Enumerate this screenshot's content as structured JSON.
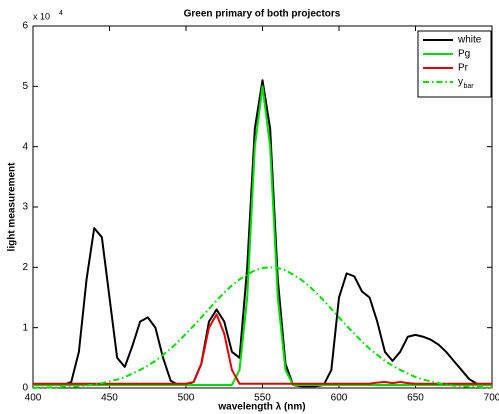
{
  "chart_data": {
    "type": "line",
    "title": "Green primary of both projectors",
    "xlabel": "wavelength λ (nm)",
    "ylabel": "light measurement",
    "y_multiplier": "x 10",
    "y_multiplier_exponent": "4",
    "xlim": [
      400,
      700
    ],
    "ylim": [
      0,
      6
    ],
    "xticks": [
      400,
      450,
      500,
      550,
      600,
      650,
      700
    ],
    "yticks": [
      0,
      1,
      2,
      3,
      4,
      5,
      6
    ],
    "legend": "top-right",
    "x": [
      400,
      405,
      410,
      415,
      420,
      425,
      430,
      435,
      440,
      445,
      450,
      455,
      460,
      465,
      470,
      475,
      480,
      485,
      490,
      495,
      500,
      505,
      510,
      515,
      520,
      525,
      530,
      535,
      540,
      545,
      550,
      555,
      560,
      565,
      570,
      575,
      580,
      585,
      590,
      595,
      600,
      605,
      610,
      615,
      620,
      625,
      630,
      635,
      640,
      645,
      650,
      655,
      660,
      665,
      670,
      675,
      680,
      685,
      690,
      695,
      700
    ],
    "series": [
      {
        "name": "white",
        "color": "#000000",
        "dash": "solid",
        "values": [
          0.05,
          0.05,
          0.05,
          0.05,
          0.05,
          0.1,
          0.6,
          1.8,
          2.65,
          2.5,
          1.5,
          0.5,
          0.35,
          0.7,
          1.1,
          1.17,
          1.0,
          0.5,
          0.12,
          0.05,
          0.05,
          0.1,
          0.4,
          1.1,
          1.3,
          1.1,
          0.6,
          0.5,
          2.0,
          4.3,
          5.1,
          4.3,
          1.8,
          0.4,
          0.05,
          0.03,
          0.03,
          0.03,
          0.05,
          0.3,
          1.5,
          1.9,
          1.85,
          1.6,
          1.5,
          1.1,
          0.6,
          0.45,
          0.6,
          0.85,
          0.88,
          0.85,
          0.8,
          0.72,
          0.6,
          0.45,
          0.3,
          0.15,
          0.07,
          0.05,
          0.05
        ]
      },
      {
        "name": "Pg",
        "color": "#00dd00",
        "dash": "solid",
        "values": [
          0.05,
          0.05,
          0.05,
          0.05,
          0.05,
          0.05,
          0.05,
          0.05,
          0.05,
          0.05,
          0.05,
          0.05,
          0.05,
          0.05,
          0.05,
          0.05,
          0.05,
          0.05,
          0.05,
          0.05,
          0.05,
          0.05,
          0.05,
          0.05,
          0.05,
          0.05,
          0.05,
          0.3,
          1.5,
          4.0,
          5.0,
          4.0,
          1.5,
          0.3,
          0.05,
          0.05,
          0.05,
          0.05,
          0.05,
          0.05,
          0.05,
          0.05,
          0.05,
          0.05,
          0.05,
          0.05,
          0.05,
          0.05,
          0.05,
          0.05,
          0.05,
          0.05,
          0.05,
          0.05,
          0.05,
          0.05,
          0.05,
          0.05,
          0.05,
          0.05,
          0.05
        ]
      },
      {
        "name": "Pr",
        "color": "#e00000",
        "dash": "solid",
        "values": [
          0.07,
          0.07,
          0.07,
          0.07,
          0.07,
          0.07,
          0.07,
          0.07,
          0.07,
          0.07,
          0.07,
          0.07,
          0.07,
          0.07,
          0.07,
          0.07,
          0.07,
          0.07,
          0.07,
          0.07,
          0.07,
          0.1,
          0.4,
          1.0,
          1.22,
          0.9,
          0.3,
          0.07,
          0.07,
          0.07,
          0.07,
          0.07,
          0.07,
          0.07,
          0.07,
          0.07,
          0.07,
          0.07,
          0.07,
          0.07,
          0.07,
          0.07,
          0.07,
          0.07,
          0.07,
          0.09,
          0.1,
          0.08,
          0.1,
          0.08,
          0.07,
          0.07,
          0.07,
          0.07,
          0.07,
          0.07,
          0.07,
          0.07,
          0.07,
          0.07,
          0.07
        ]
      },
      {
        "name": "y",
        "name_subscript": "bar",
        "color": "#00dd00",
        "dash": "dashdot",
        "values": [
          0.0,
          0.01,
          0.01,
          0.01,
          0.02,
          0.02,
          0.03,
          0.04,
          0.06,
          0.08,
          0.11,
          0.14,
          0.18,
          0.24,
          0.3,
          0.37,
          0.45,
          0.55,
          0.65,
          0.77,
          0.9,
          1.03,
          1.17,
          1.31,
          1.45,
          1.58,
          1.7,
          1.8,
          1.88,
          1.95,
          1.99,
          2.0,
          1.99,
          1.95,
          1.88,
          1.8,
          1.7,
          1.58,
          1.45,
          1.31,
          1.17,
          1.03,
          0.9,
          0.77,
          0.65,
          0.55,
          0.45,
          0.37,
          0.3,
          0.24,
          0.18,
          0.14,
          0.11,
          0.08,
          0.06,
          0.04,
          0.03,
          0.02,
          0.02,
          0.01,
          0.01
        ]
      }
    ]
  }
}
